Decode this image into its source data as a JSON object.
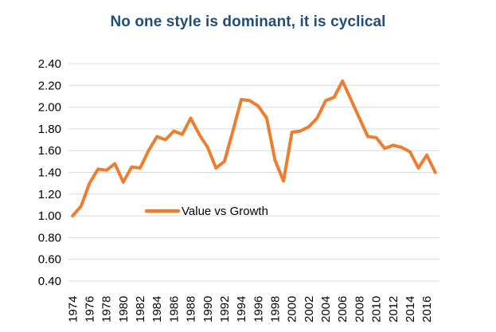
{
  "chart_data": {
    "type": "line",
    "title": "No one style is dominant, it is cyclical",
    "xlabel": "",
    "ylabel": "",
    "ylim": [
      0.4,
      2.4
    ],
    "yticks": [
      "0.40",
      "0.60",
      "0.80",
      "1.00",
      "1.20",
      "1.40",
      "1.60",
      "1.80",
      "2.00",
      "2.20",
      "2.40"
    ],
    "xticks": [
      "1974",
      "1976",
      "1978",
      "1980",
      "1982",
      "1984",
      "1986",
      "1988",
      "1990",
      "1992",
      "1994",
      "1996",
      "1998",
      "2000",
      "2002",
      "2004",
      "2006",
      "2008",
      "2010",
      "2012",
      "2014",
      "2016"
    ],
    "grid": true,
    "legend": "center-left",
    "x": [
      1974,
      1975,
      1976,
      1977,
      1978,
      1979,
      1980,
      1981,
      1982,
      1983,
      1984,
      1985,
      1986,
      1987,
      1988,
      1989,
      1990,
      1991,
      1992,
      1993,
      1994,
      1995,
      1996,
      1997,
      1998,
      1999,
      2000,
      2001,
      2002,
      2003,
      2004,
      2005,
      2006,
      2007,
      2008,
      2009,
      2010,
      2011,
      2012,
      2013,
      2014,
      2015,
      2016,
      2017
    ],
    "series": [
      {
        "name": "Value  vs Growth",
        "color": "#ed7d31",
        "values": [
          1.0,
          1.09,
          1.3,
          1.43,
          1.42,
          1.48,
          1.31,
          1.45,
          1.44,
          1.6,
          1.73,
          1.7,
          1.78,
          1.75,
          1.9,
          1.75,
          1.63,
          1.44,
          1.5,
          1.78,
          2.07,
          2.06,
          2.01,
          1.9,
          1.51,
          1.32,
          1.77,
          1.78,
          1.82,
          1.9,
          2.06,
          2.09,
          2.24,
          2.07,
          1.9,
          1.73,
          1.72,
          1.62,
          1.65,
          1.63,
          1.59,
          1.44,
          1.56,
          1.4
        ]
      }
    ]
  },
  "colors": {
    "title": "#1f4e79",
    "line": "#ed7d31",
    "grid": "#d9d9d9"
  }
}
